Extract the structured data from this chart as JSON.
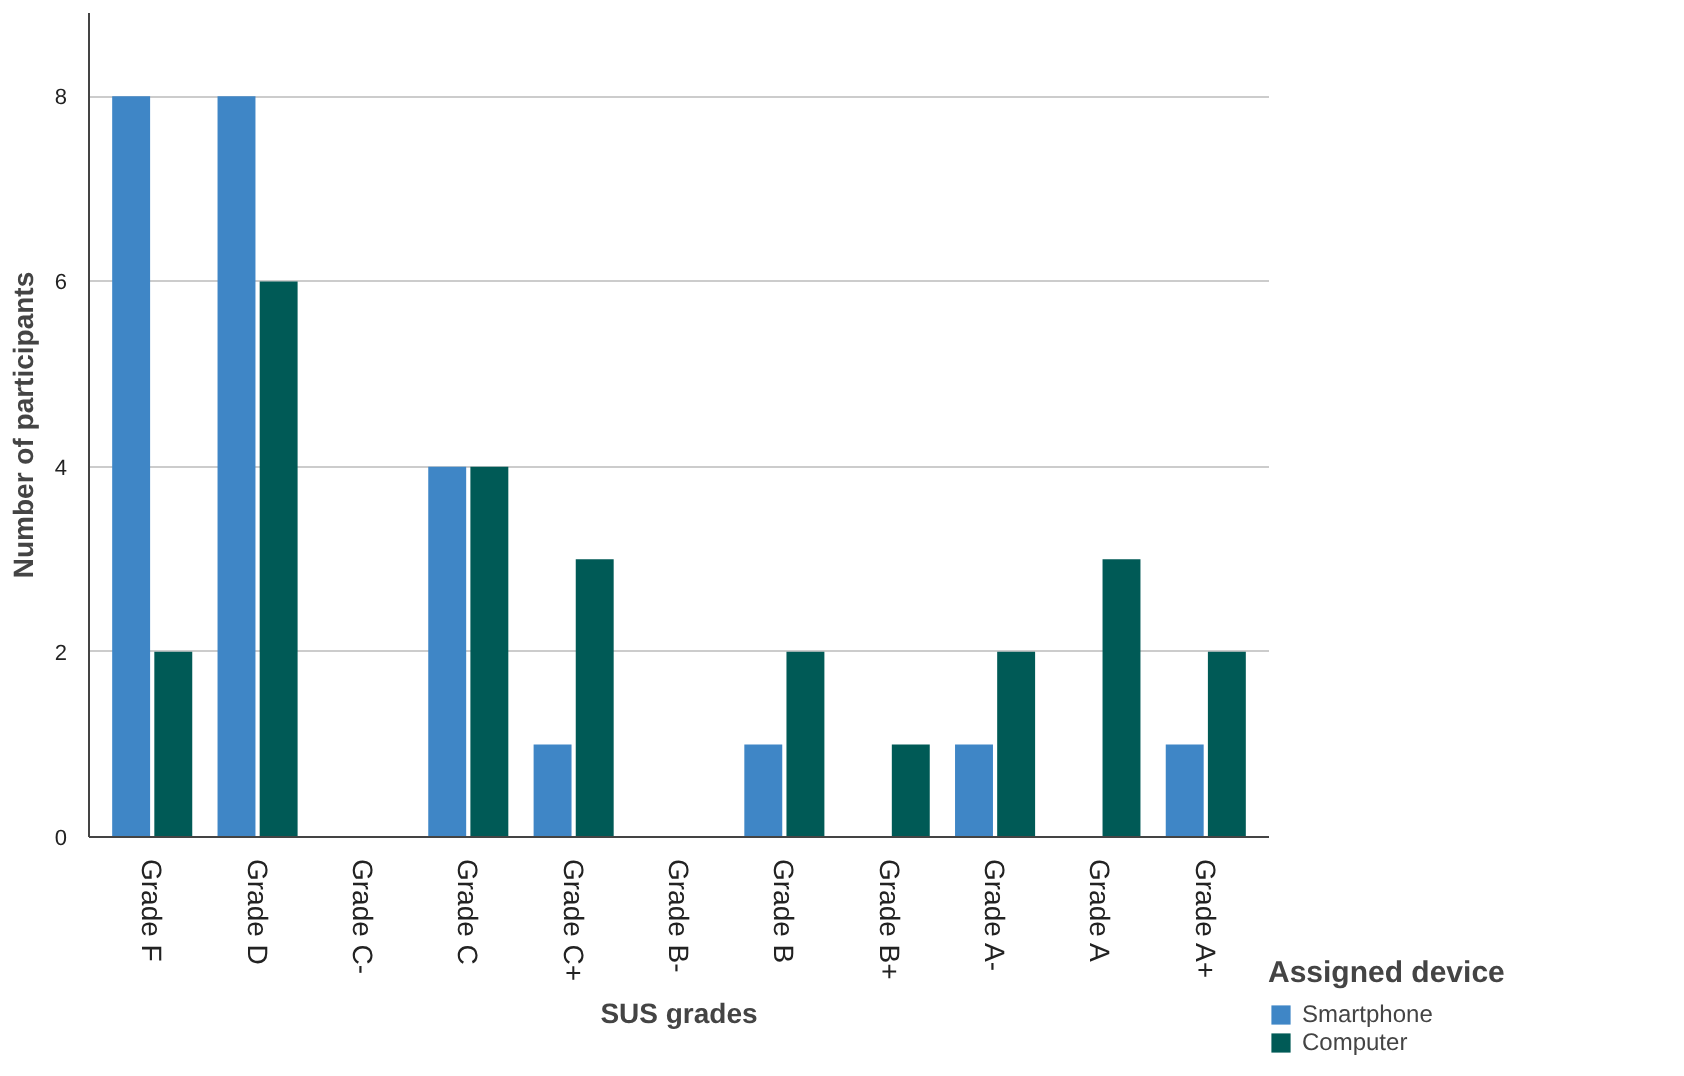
{
  "chart_data": {
    "type": "bar",
    "xlabel": "SUS grades",
    "ylabel": "Number of participants",
    "legend_title": "Assigned device",
    "categories": [
      "Grade F",
      "Grade D",
      "Grade C-",
      "Grade C",
      "Grade C+",
      "Grade B-",
      "Grade B",
      "Grade B+",
      "Grade A-",
      "Grade A",
      "Grade A+"
    ],
    "series": [
      {
        "name": "Smartphone",
        "color": "#3f86c6",
        "values": [
          8,
          8,
          0,
          4,
          1,
          0,
          1,
          0,
          1,
          0,
          1
        ]
      },
      {
        "name": "Computer",
        "color": "#005a56",
        "values": [
          2,
          6,
          0,
          4,
          3,
          0,
          2,
          1,
          2,
          3,
          2
        ]
      }
    ],
    "ylim": [
      0,
      8.9
    ],
    "yticks": [
      0,
      2,
      4,
      6,
      8
    ],
    "grid": "y",
    "legend": "right"
  }
}
